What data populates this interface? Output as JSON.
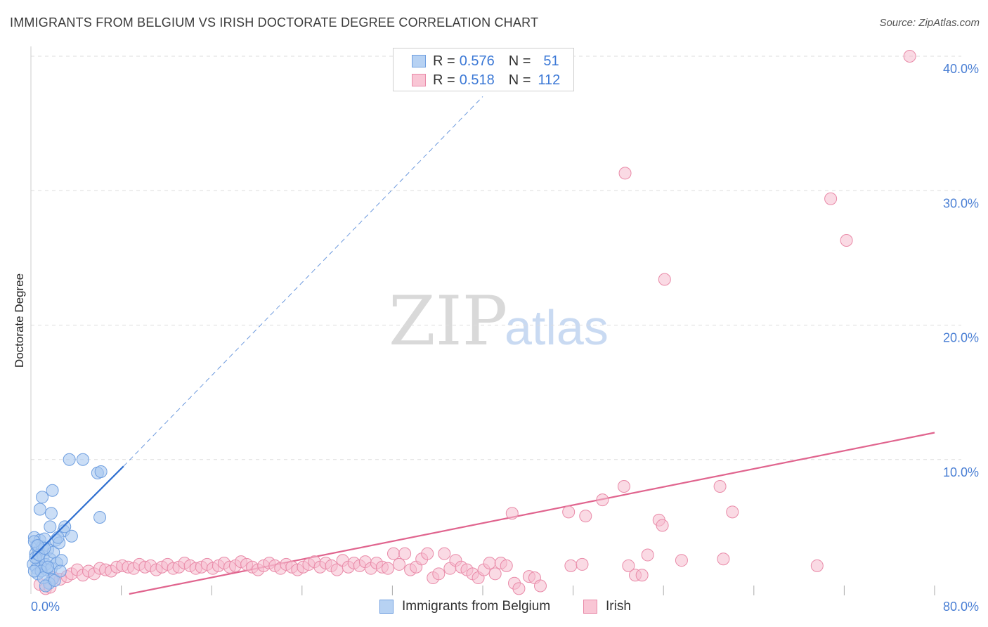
{
  "title": "IMMIGRANTS FROM BELGIUM VS IRISH DOCTORATE DEGREE CORRELATION CHART",
  "source": "Source: ZipAtlas.com",
  "watermark": {
    "zip": "ZIP",
    "atlas": "atlas"
  },
  "legend": {
    "series1": {
      "r_label": "R =",
      "r_value": "0.576",
      "n_label": "N =",
      "n_value": "51"
    },
    "series2": {
      "r_label": "R =",
      "r_value": "0.518",
      "n_label": "N =",
      "n_value": "112"
    }
  },
  "bottom_legend": {
    "series1": "Immigrants from Belgium",
    "series2": "Irish"
  },
  "colors": {
    "blue_fill": "#a9c8f0",
    "blue_stroke": "#6f9fe0",
    "blue_line": "#2f6fd0",
    "pink_fill": "#f6bccd",
    "pink_stroke": "#e98aa8",
    "pink_line": "#e0648e",
    "grid": "#dddddd",
    "tick_text": "#4a7fd4"
  },
  "chart_data": {
    "type": "scatter",
    "title": "IMMIGRANTS FROM BELGIUM VS IRISH DOCTORATE DEGREE CORRELATION CHART",
    "xlabel": "",
    "ylabel": "Doctorate Degree",
    "xlim": [
      0,
      80
    ],
    "ylim": [
      0,
      40
    ],
    "x_tick_labels": [
      "0.0%",
      "80.0%"
    ],
    "y_ticks": [
      10,
      20,
      30,
      40
    ],
    "y_tick_labels": [
      "10.0%",
      "20.0%",
      "30.0%",
      "40.0%"
    ],
    "series": [
      {
        "name": "Immigrants from Belgium",
        "color": "blue",
        "R": 0.576,
        "N": 51,
        "points": [
          [
            0.3,
            4.2
          ],
          [
            0.5,
            3.6
          ],
          [
            0.4,
            3.0
          ],
          [
            0.6,
            2.6
          ],
          [
            0.2,
            2.2
          ],
          [
            0.8,
            4.0
          ],
          [
            0.7,
            3.2
          ],
          [
            0.9,
            2.0
          ],
          [
            1.0,
            3.5
          ],
          [
            1.2,
            4.1
          ],
          [
            1.1,
            2.8
          ],
          [
            0.5,
            1.9
          ],
          [
            0.6,
            1.5
          ],
          [
            0.3,
            3.9
          ],
          [
            1.4,
            1.8
          ],
          [
            1.3,
            2.2
          ],
          [
            1.5,
            3.3
          ],
          [
            1.7,
            2.6
          ],
          [
            1.8,
            1.9
          ],
          [
            2.0,
            3.1
          ],
          [
            2.2,
            4.0
          ],
          [
            1.9,
            1.1
          ],
          [
            1.6,
            0.8
          ],
          [
            2.5,
            3.8
          ],
          [
            2.3,
            2.3
          ],
          [
            2.7,
            2.5
          ],
          [
            0.8,
            6.3
          ],
          [
            1.0,
            7.2
          ],
          [
            1.8,
            6.0
          ],
          [
            1.7,
            5.0
          ],
          [
            1.9,
            7.7
          ],
          [
            2.9,
            4.7
          ],
          [
            3.0,
            5.0
          ],
          [
            3.6,
            4.3
          ],
          [
            3.4,
            10.0
          ],
          [
            4.6,
            10.0
          ],
          [
            5.9,
            9.0
          ],
          [
            6.2,
            9.1
          ],
          [
            6.1,
            5.7
          ],
          [
            0.4,
            2.7
          ],
          [
            0.9,
            1.7
          ],
          [
            1.1,
            1.2
          ],
          [
            1.3,
            0.6
          ],
          [
            0.7,
            2.9
          ],
          [
            2.1,
            1.0
          ],
          [
            2.4,
            4.2
          ],
          [
            1.2,
            3.4
          ],
          [
            0.6,
            3.6
          ],
          [
            2.6,
            1.7
          ],
          [
            1.5,
            2.0
          ],
          [
            0.3,
            1.7
          ]
        ],
        "trend": {
          "x": [
            0.0,
            8.2
          ],
          "y": [
            2.6,
            9.5
          ]
        },
        "trend_extension": {
          "x": [
            8.2,
            40.0
          ],
          "y": [
            9.5,
            37.0
          ]
        }
      },
      {
        "name": "Irish",
        "color": "pink",
        "R": 0.518,
        "N": 112,
        "points": [
          [
            0.8,
            0.7
          ],
          [
            1.3,
            0.4
          ],
          [
            2.0,
            1.2
          ],
          [
            2.6,
            1.1
          ],
          [
            3.2,
            1.3
          ],
          [
            3.6,
            1.5
          ],
          [
            4.1,
            1.8
          ],
          [
            4.6,
            1.4
          ],
          [
            5.1,
            1.7
          ],
          [
            5.6,
            1.5
          ],
          [
            6.1,
            1.9
          ],
          [
            6.6,
            1.8
          ],
          [
            7.1,
            1.7
          ],
          [
            7.6,
            2.0
          ],
          [
            8.1,
            2.1
          ],
          [
            8.6,
            2.0
          ],
          [
            9.1,
            1.9
          ],
          [
            9.6,
            2.2
          ],
          [
            10.1,
            2.0
          ],
          [
            10.6,
            2.1
          ],
          [
            11.1,
            1.8
          ],
          [
            11.6,
            2.0
          ],
          [
            12.1,
            2.2
          ],
          [
            12.6,
            1.9
          ],
          [
            13.1,
            2.0
          ],
          [
            13.6,
            2.3
          ],
          [
            14.1,
            2.1
          ],
          [
            14.6,
            1.9
          ],
          [
            15.1,
            2.0
          ],
          [
            15.6,
            2.2
          ],
          [
            16.1,
            1.9
          ],
          [
            16.6,
            2.1
          ],
          [
            17.1,
            2.3
          ],
          [
            17.6,
            2.0
          ],
          [
            18.1,
            2.1
          ],
          [
            18.6,
            2.4
          ],
          [
            19.1,
            2.2
          ],
          [
            19.6,
            2.0
          ],
          [
            20.1,
            1.8
          ],
          [
            20.6,
            2.1
          ],
          [
            21.1,
            2.3
          ],
          [
            21.6,
            2.1
          ],
          [
            22.1,
            1.9
          ],
          [
            22.6,
            2.2
          ],
          [
            23.1,
            2.0
          ],
          [
            23.6,
            1.8
          ],
          [
            24.1,
            2.0
          ],
          [
            24.6,
            2.2
          ],
          [
            25.1,
            2.4
          ],
          [
            25.6,
            2.0
          ],
          [
            26.1,
            2.3
          ],
          [
            26.6,
            2.1
          ],
          [
            27.1,
            1.8
          ],
          [
            27.6,
            2.5
          ],
          [
            28.1,
            2.0
          ],
          [
            28.6,
            2.3
          ],
          [
            29.1,
            2.1
          ],
          [
            29.6,
            2.4
          ],
          [
            30.1,
            1.9
          ],
          [
            30.6,
            2.3
          ],
          [
            31.1,
            2.0
          ],
          [
            31.6,
            1.9
          ],
          [
            32.1,
            3.0
          ],
          [
            32.6,
            2.2
          ],
          [
            33.1,
            3.0
          ],
          [
            33.6,
            1.8
          ],
          [
            34.1,
            2.0
          ],
          [
            34.6,
            2.6
          ],
          [
            35.1,
            3.0
          ],
          [
            35.6,
            1.2
          ],
          [
            36.1,
            1.5
          ],
          [
            36.6,
            3.0
          ],
          [
            37.1,
            1.9
          ],
          [
            37.6,
            2.5
          ],
          [
            38.1,
            2.0
          ],
          [
            38.6,
            1.8
          ],
          [
            39.1,
            1.5
          ],
          [
            39.6,
            1.2
          ],
          [
            40.1,
            1.8
          ],
          [
            40.6,
            2.3
          ],
          [
            41.1,
            1.5
          ],
          [
            41.6,
            2.3
          ],
          [
            42.1,
            2.1
          ],
          [
            42.6,
            6.0
          ],
          [
            42.8,
            0.8
          ],
          [
            43.2,
            0.4
          ],
          [
            44.1,
            1.3
          ],
          [
            44.6,
            1.2
          ],
          [
            45.1,
            0.6
          ],
          [
            47.6,
            6.1
          ],
          [
            47.8,
            2.1
          ],
          [
            48.8,
            2.2
          ],
          [
            49.1,
            5.8
          ],
          [
            50.6,
            7.0
          ],
          [
            52.5,
            8.0
          ],
          [
            52.6,
            31.3
          ],
          [
            52.9,
            2.1
          ],
          [
            53.5,
            1.4
          ],
          [
            54.1,
            1.4
          ],
          [
            54.6,
            2.9
          ],
          [
            55.6,
            5.5
          ],
          [
            55.9,
            5.1
          ],
          [
            56.1,
            23.4
          ],
          [
            57.6,
            2.5
          ],
          [
            61.0,
            8.0
          ],
          [
            61.3,
            2.6
          ],
          [
            62.1,
            6.1
          ],
          [
            69.6,
            2.1
          ],
          [
            70.8,
            29.4
          ],
          [
            72.2,
            26.3
          ],
          [
            77.8,
            40.0
          ],
          [
            1.7,
            0.5
          ]
        ],
        "trend": {
          "x": [
            8.7,
            80.0
          ],
          "y": [
            0.0,
            12.0
          ]
        }
      }
    ]
  }
}
